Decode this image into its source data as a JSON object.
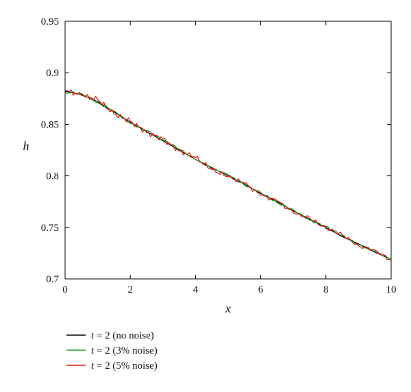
{
  "chart_data": {
    "type": "line",
    "xlabel": "x",
    "ylabel": "h",
    "xlim": [
      0,
      10
    ],
    "ylim": [
      0.7,
      0.95
    ],
    "xticks": [
      0,
      2,
      4,
      6,
      8,
      10
    ],
    "yticks": [
      0.7,
      0.75,
      0.8,
      0.85,
      0.9,
      0.95
    ],
    "xtick_labels": [
      "0",
      "2",
      "4",
      "6",
      "8",
      "10"
    ],
    "ytick_labels": [
      "0.7",
      "0.75",
      "0.8",
      "0.85",
      "0.9",
      "0.95"
    ],
    "grid": false,
    "legend_placement": "below-left",
    "series": [
      {
        "name": "t = 2 (no noise)",
        "name_parts": {
          "var": "t",
          "rest": " = 2 (no noise)"
        },
        "color": "#000000",
        "x": [
          0,
          0.5,
          1,
          1.5,
          2,
          2.5,
          3,
          3.5,
          4,
          4.5,
          5,
          5.5,
          6,
          6.5,
          7,
          7.5,
          8,
          8.5,
          9,
          9.5,
          10
        ],
        "y": [
          0.882,
          0.879,
          0.872,
          0.862,
          0.852,
          0.843,
          0.834,
          0.825,
          0.816,
          0.808,
          0.8,
          0.792,
          0.783,
          0.775,
          0.766,
          0.758,
          0.75,
          0.741,
          0.734,
          0.726,
          0.719
        ]
      },
      {
        "name": "t = 2 (3% noise)",
        "name_parts": {
          "var": "t",
          "rest": " = 2 (3% noise)"
        },
        "color": "#1a9a1a",
        "x": [
          0,
          0.5,
          1,
          1.5,
          2,
          2.5,
          3,
          3.5,
          4,
          4.5,
          5,
          5.5,
          6,
          6.5,
          7,
          7.5,
          8,
          8.5,
          9,
          9.5,
          10
        ],
        "y": [
          0.881,
          0.88,
          0.871,
          0.863,
          0.851,
          0.844,
          0.835,
          0.826,
          0.816,
          0.807,
          0.801,
          0.791,
          0.784,
          0.774,
          0.767,
          0.757,
          0.751,
          0.742,
          0.733,
          0.727,
          0.719
        ]
      },
      {
        "name": "t = 2 (5% noise)",
        "name_parts": {
          "var": "t",
          "rest": " = 2 (5% noise)"
        },
        "color": "#e01010",
        "x": [
          0,
          0.5,
          1,
          1.5,
          2,
          2.5,
          3,
          3.5,
          4,
          4.5,
          5,
          5.5,
          6,
          6.5,
          7,
          7.5,
          8,
          8.5,
          9,
          9.5,
          10
        ],
        "y": [
          0.883,
          0.878,
          0.874,
          0.86,
          0.853,
          0.842,
          0.836,
          0.824,
          0.818,
          0.806,
          0.799,
          0.793,
          0.781,
          0.776,
          0.764,
          0.759,
          0.749,
          0.743,
          0.732,
          0.728,
          0.718
        ]
      }
    ]
  }
}
